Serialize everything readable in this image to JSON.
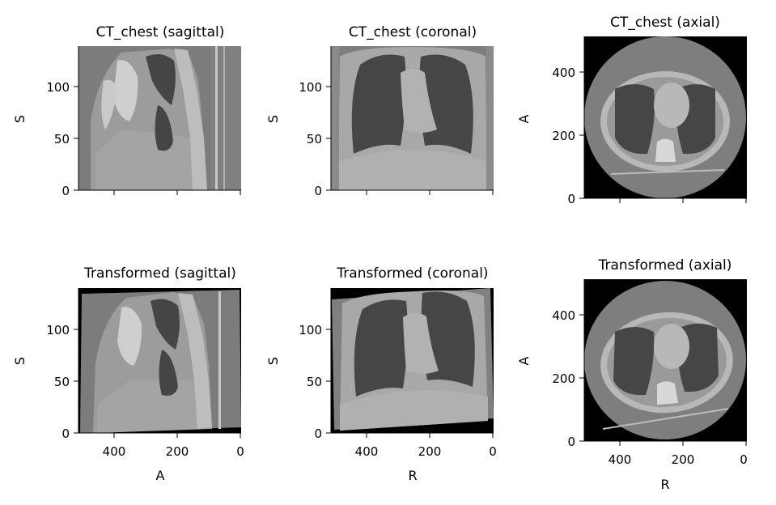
{
  "figure": {
    "panels": [
      {
        "title": "CT_chest (sagittal)",
        "view": "sagittal",
        "ylabel": "S",
        "xlabel": "",
        "xticks": [],
        "yticks": [
          "0",
          "50",
          "100"
        ],
        "ylim": [
          0,
          139
        ],
        "xlim": [
          512,
          0
        ],
        "show_x_tick_labels": false
      },
      {
        "title": "CT_chest (coronal)",
        "view": "coronal",
        "ylabel": "S",
        "xlabel": "",
        "xticks": [],
        "yticks": [
          "0",
          "50",
          "100"
        ],
        "ylim": [
          0,
          139
        ],
        "xlim": [
          512,
          0
        ],
        "show_x_tick_labels": false
      },
      {
        "title": "CT_chest (axial)",
        "view": "axial",
        "ylabel": "A",
        "xlabel": "",
        "xticks": [],
        "yticks": [
          "0",
          "200",
          "400"
        ],
        "ylim": [
          0,
          512
        ],
        "xlim": [
          512,
          0
        ],
        "show_x_tick_labels": false
      },
      {
        "title": "Transformed (sagittal)",
        "view": "sagittal",
        "ylabel": "S",
        "xlabel": "A",
        "xticks": [
          "400",
          "200",
          "0"
        ],
        "yticks": [
          "0",
          "50",
          "100"
        ],
        "ylim": [
          0,
          139
        ],
        "xlim": [
          512,
          0
        ],
        "show_x_tick_labels": true
      },
      {
        "title": "Transformed (coronal)",
        "view": "coronal",
        "ylabel": "S",
        "xlabel": "R",
        "xticks": [
          "400",
          "200",
          "0"
        ],
        "yticks": [
          "0",
          "50",
          "100"
        ],
        "ylim": [
          0,
          139
        ],
        "xlim": [
          512,
          0
        ],
        "show_x_tick_labels": true
      },
      {
        "title": "Transformed (axial)",
        "view": "axial",
        "ylabel": "A",
        "xlabel": "R",
        "xticks": [
          "400",
          "200",
          "0"
        ],
        "yticks": [
          "0",
          "200",
          "400"
        ],
        "ylim": [
          0,
          512
        ],
        "xlim": [
          512,
          0
        ],
        "show_x_tick_labels": true
      }
    ]
  }
}
